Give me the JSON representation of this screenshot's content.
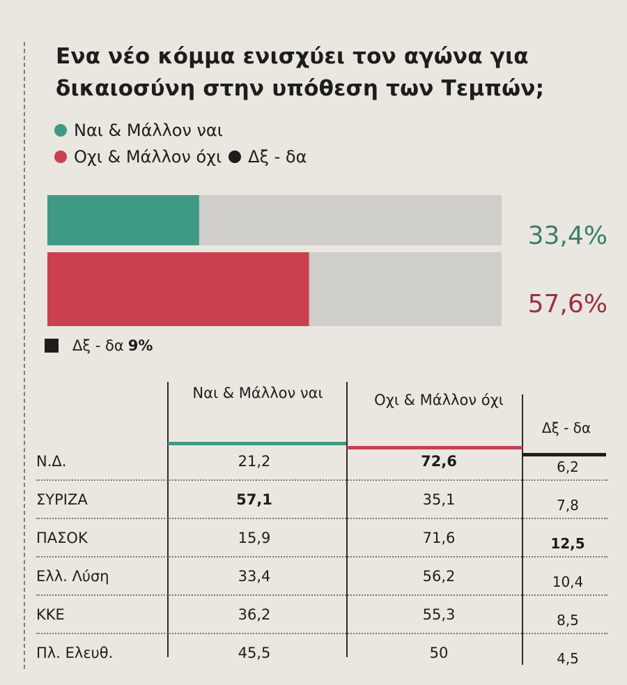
{
  "title": "Ενα νέο κόμμα ενισχύει τον αγώνα για δικαιοσύνη στην υπόθεση των Τεμπών;",
  "legend": {
    "yes": "Ναι & Μάλλον ναι",
    "no": "Οχι & Μάλλον όχι",
    "dk": "Δξ - δα"
  },
  "colors": {
    "yes": "#3e9a84",
    "no": "#c9414f",
    "dk": "#1d1d1b",
    "track": "#cfcecb"
  },
  "chart_data": {
    "type": "bar",
    "orientation": "horizontal",
    "categories": [
      "Ναι & Μάλλον ναι",
      "Οχι & Μάλλον όχι"
    ],
    "values": [
      33.4,
      57.6
    ],
    "value_labels": [
      "33,4%",
      "57,6%"
    ],
    "xlim": [
      0,
      100
    ],
    "dk_label": "Δξ - δα",
    "dk_value": "9%"
  },
  "table": {
    "headers": {
      "yes": "Ναι & Μάλλον ναι",
      "no": "Οχι & Μάλλον όχι",
      "dk": "Δξ - δα"
    },
    "rows": [
      {
        "party": "Ν.Δ.",
        "yes": "21,2",
        "no": "72,6",
        "dk": "6,2",
        "bold": "no"
      },
      {
        "party": "ΣΥΡΙΖΑ",
        "yes": "57,1",
        "no": "35,1",
        "dk": "7,8",
        "bold": "yes"
      },
      {
        "party": "ΠΑΣΟΚ",
        "yes": "15,9",
        "no": "71,6",
        "dk": "12,5",
        "bold": "dk"
      },
      {
        "party": "Ελλ. Λύση",
        "yes": "33,4",
        "no": "56,2",
        "dk": "10,4",
        "bold": ""
      },
      {
        "party": "ΚΚΕ",
        "yes": "36,2",
        "no": "55,3",
        "dk": "8,5",
        "bold": ""
      },
      {
        "party": "Πλ. Ελευθ.",
        "yes": "45,5",
        "no": "50",
        "dk": "4,5",
        "bold": ""
      }
    ]
  }
}
